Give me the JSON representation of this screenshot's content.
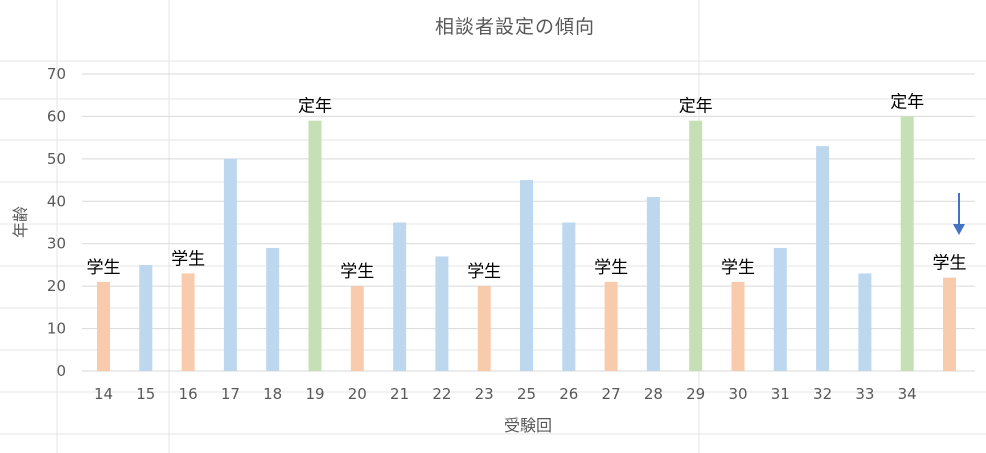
{
  "chart_data": {
    "type": "bar",
    "title": "相談者設定の傾向",
    "xlabel": "受験回",
    "ylabel": "年齢",
    "ylim": [
      0,
      70
    ],
    "yticks": [
      0,
      10,
      20,
      30,
      40,
      50,
      60,
      70
    ],
    "grid": true,
    "categories": [
      "14",
      "15",
      "16",
      "17",
      "18",
      "19",
      "20",
      "21",
      "22",
      "23",
      "25",
      "26",
      "27",
      "28",
      "29",
      "30",
      "31",
      "32",
      "33",
      "34",
      ""
    ],
    "values": [
      21,
      25,
      23,
      50,
      29,
      59,
      20,
      35,
      27,
      20,
      45,
      35,
      21,
      41,
      59,
      21,
      29,
      53,
      23,
      60,
      22
    ],
    "categories_type": [
      "学生",
      "other",
      "学生",
      "other",
      "other",
      "定年",
      "学生",
      "other",
      "other",
      "学生",
      "other",
      "other",
      "学生",
      "other",
      "定年",
      "学生",
      "other",
      "other",
      "other",
      "定年",
      "学生"
    ],
    "colors": {
      "学生": "#f8cbad",
      "定年": "#c5e0b4",
      "other": "#bdd7ee"
    },
    "data_labels": [
      "学生",
      "",
      "学生",
      "",
      "",
      "定年",
      "学生",
      "",
      "",
      "学生",
      "",
      "",
      "学生",
      "",
      "定年",
      "学生",
      "",
      "",
      "",
      "定年",
      "学生"
    ],
    "annotation_arrow": {
      "color": "#4472c4"
    }
  }
}
